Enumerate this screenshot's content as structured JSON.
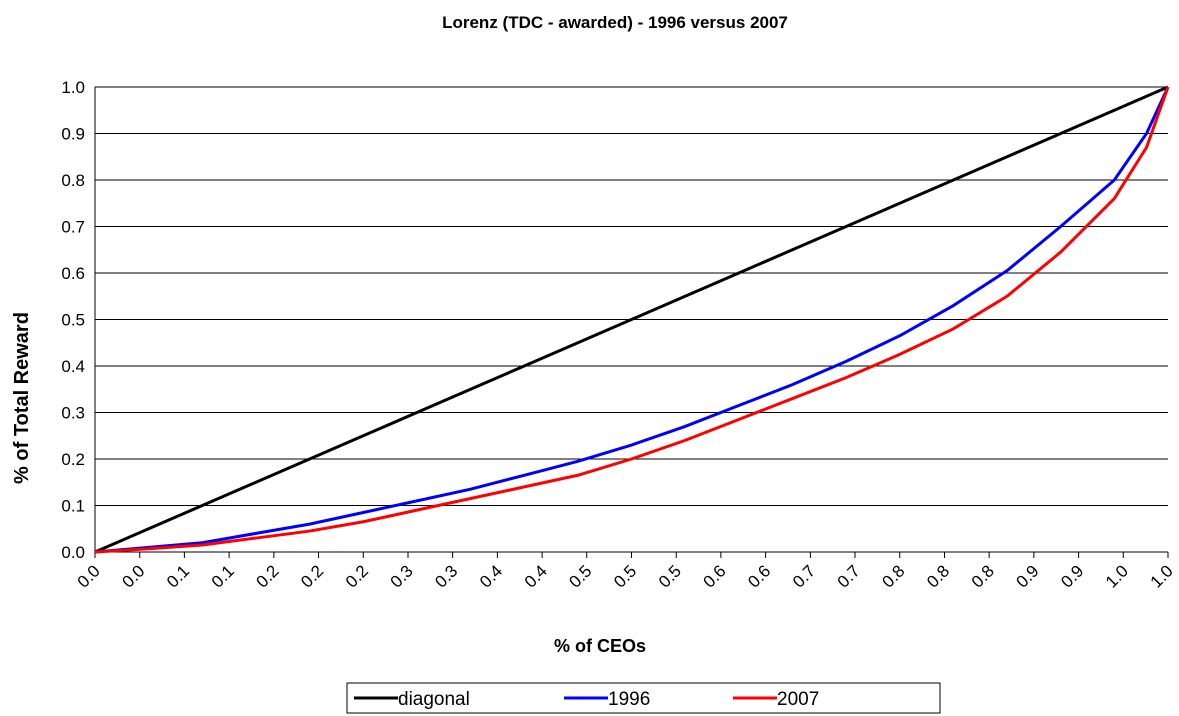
{
  "chart_data": {
    "type": "line",
    "title": "Lorenz (TDC - awarded) - 1996 versus 2007",
    "x_label": "% of CEOs",
    "y_label": "% of Total Reward",
    "x": [
      0,
      0.05,
      0.1,
      0.15,
      0.2,
      0.25,
      0.3,
      0.35,
      0.4,
      0.45,
      0.5,
      0.55,
      0.6,
      0.65,
      0.7,
      0.75,
      0.8,
      0.85,
      0.9,
      0.95,
      0.98,
      1
    ],
    "series": [
      {
        "name": "diagonal",
        "color": "#000000",
        "values": [
          0,
          0.05,
          0.1,
          0.15,
          0.2,
          0.25,
          0.3,
          0.35,
          0.4,
          0.45,
          0.5,
          0.55,
          0.6,
          0.65,
          0.7,
          0.75,
          0.8,
          0.85,
          0.9,
          0.95,
          0.98,
          1
        ]
      },
      {
        "name": "1996",
        "color": "#0000ff",
        "values": [
          0,
          0.01,
          0.02,
          0.04,
          0.06,
          0.085,
          0.11,
          0.135,
          0.165,
          0.195,
          0.23,
          0.27,
          0.315,
          0.36,
          0.41,
          0.465,
          0.53,
          0.605,
          0.7,
          0.8,
          0.9,
          1
        ]
      },
      {
        "name": "2007",
        "color": "#ff0000",
        "values": [
          0,
          0.007,
          0.015,
          0.03,
          0.045,
          0.065,
          0.09,
          0.115,
          0.14,
          0.165,
          0.2,
          0.24,
          0.285,
          0.33,
          0.375,
          0.425,
          0.48,
          0.55,
          0.645,
          0.76,
          0.87,
          1
        ]
      }
    ],
    "xlim": [
      0,
      1
    ],
    "xticks": [
      {
        "value": 0,
        "label": "0.0"
      },
      {
        "value": 0.0417,
        "label": "0.0"
      },
      {
        "value": 0.0833,
        "label": "0.1"
      },
      {
        "value": 0.125,
        "label": "0.1"
      },
      {
        "value": 0.1667,
        "label": "0.2"
      },
      {
        "value": 0.2083,
        "label": "0.2"
      },
      {
        "value": 0.25,
        "label": "0.2"
      },
      {
        "value": 0.2917,
        "label": "0.3"
      },
      {
        "value": 0.3333,
        "label": "0.3"
      },
      {
        "value": 0.375,
        "label": "0.4"
      },
      {
        "value": 0.4167,
        "label": "0.4"
      },
      {
        "value": 0.4583,
        "label": "0.5"
      },
      {
        "value": 0.5,
        "label": "0.5"
      },
      {
        "value": 0.5417,
        "label": "0.5"
      },
      {
        "value": 0.5833,
        "label": "0.6"
      },
      {
        "value": 0.625,
        "label": "0.6"
      },
      {
        "value": 0.6667,
        "label": "0.7"
      },
      {
        "value": 0.7083,
        "label": "0.7"
      },
      {
        "value": 0.75,
        "label": "0.8"
      },
      {
        "value": 0.7917,
        "label": "0.8"
      },
      {
        "value": 0.8333,
        "label": "0.8"
      },
      {
        "value": 0.875,
        "label": "0.9"
      },
      {
        "value": 0.9167,
        "label": "0.9"
      },
      {
        "value": 0.9583,
        "label": "1.0"
      },
      {
        "value": 1,
        "label": "1.0"
      }
    ],
    "ylim": [
      0,
      1
    ],
    "yticks": [
      {
        "value": 0,
        "label": "0.0"
      },
      0.1,
      0.2,
      0.3,
      0.4,
      0.5,
      0.6,
      0.7,
      0.8,
      0.9,
      {
        "value": 1,
        "label": "1.0"
      }
    ],
    "grid": true,
    "legend": "bottom"
  }
}
